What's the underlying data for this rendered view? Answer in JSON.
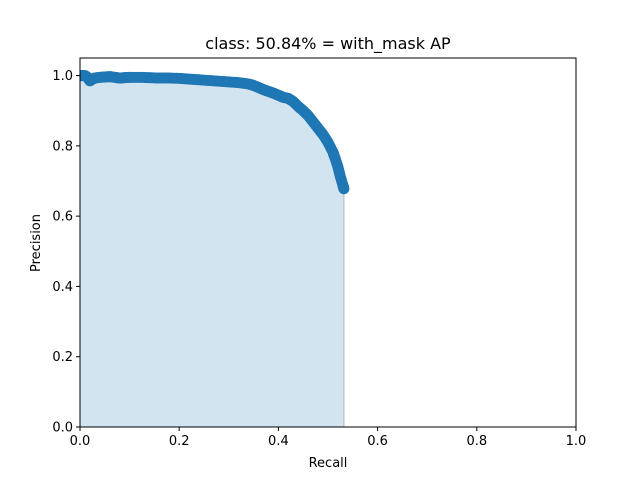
{
  "chart_data": {
    "type": "scatter",
    "title": "class: 50.84% = with_mask AP",
    "xlabel": "Recall",
    "ylabel": "Precision",
    "xlim": [
      0,
      1
    ],
    "ylim": [
      0,
      1.05
    ],
    "xticks": [
      0,
      0.2,
      0.4,
      0.6,
      0.8,
      1
    ],
    "xtick_labels": [
      "0.0",
      "0.2",
      "0.4",
      "0.6",
      "0.8",
      "1.0"
    ],
    "yticks": [
      0,
      0.2,
      0.4,
      0.6,
      0.8,
      1.0
    ],
    "ytick_labels": [
      "0.0",
      "0.2",
      "0.4",
      "0.6",
      "0.8",
      "1.0"
    ],
    "grid": false,
    "legend": "none",
    "filled_area": true,
    "series": [
      {
        "marker_color": "#1f77b4",
        "fill_color": "#1f77b4",
        "fill_opacity": 0.2,
        "points": [
          [
            0.0,
            1.0
          ],
          [
            0.005,
            1.0
          ],
          [
            0.01,
            1.0
          ],
          [
            0.015,
            0.995
          ],
          [
            0.02,
            0.985
          ],
          [
            0.025,
            0.99
          ],
          [
            0.03,
            0.993
          ],
          [
            0.04,
            0.995
          ],
          [
            0.05,
            0.996
          ],
          [
            0.06,
            0.997
          ],
          [
            0.07,
            0.995
          ],
          [
            0.08,
            0.993
          ],
          [
            0.09,
            0.994
          ],
          [
            0.1,
            0.995
          ],
          [
            0.12,
            0.995
          ],
          [
            0.14,
            0.994
          ],
          [
            0.16,
            0.993
          ],
          [
            0.18,
            0.993
          ],
          [
            0.2,
            0.992
          ],
          [
            0.22,
            0.99
          ],
          [
            0.24,
            0.988
          ],
          [
            0.26,
            0.986
          ],
          [
            0.28,
            0.984
          ],
          [
            0.3,
            0.982
          ],
          [
            0.32,
            0.98
          ],
          [
            0.34,
            0.976
          ],
          [
            0.35,
            0.972
          ],
          [
            0.36,
            0.966
          ],
          [
            0.37,
            0.96
          ],
          [
            0.38,
            0.955
          ],
          [
            0.39,
            0.95
          ],
          [
            0.4,
            0.944
          ],
          [
            0.41,
            0.938
          ],
          [
            0.42,
            0.935
          ],
          [
            0.43,
            0.926
          ],
          [
            0.44,
            0.912
          ],
          [
            0.45,
            0.9
          ],
          [
            0.46,
            0.886
          ],
          [
            0.47,
            0.868
          ],
          [
            0.48,
            0.85
          ],
          [
            0.49,
            0.832
          ],
          [
            0.5,
            0.81
          ],
          [
            0.51,
            0.782
          ],
          [
            0.515,
            0.762
          ],
          [
            0.52,
            0.74
          ],
          [
            0.525,
            0.712
          ],
          [
            0.53,
            0.688
          ],
          [
            0.532,
            0.678
          ]
        ]
      }
    ]
  }
}
